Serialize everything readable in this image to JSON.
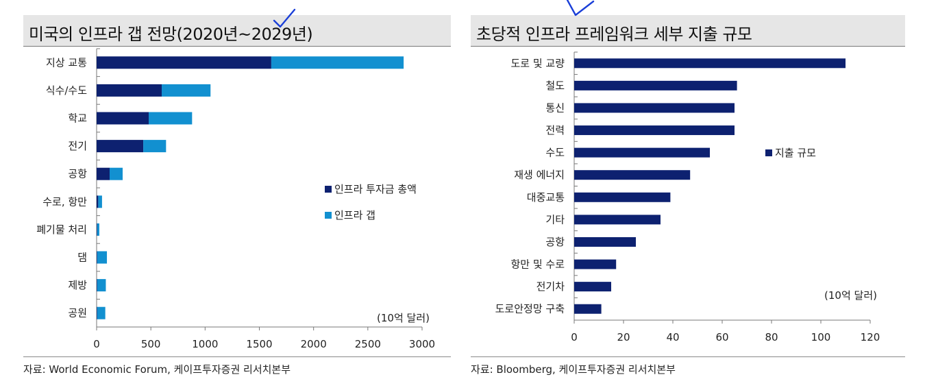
{
  "left": {
    "title": "미국의 인프라 갭 전망(2020년~2029년)",
    "source": "자료: World Economic Forum, 케이프투자증권 리서치본부",
    "chart_data": {
      "type": "bar",
      "orientation": "horizontal",
      "stacked": true,
      "categories": [
        "지상 교통",
        "식수/수도",
        "학교",
        "전기",
        "공항",
        "수로, 항만",
        "폐기물 처리",
        "댐",
        "제방",
        "공원"
      ],
      "series": [
        {
          "name": "인프라 투자금 총액",
          "color": "#0d2170",
          "values": [
            1610,
            600,
            480,
            430,
            120,
            15,
            5,
            5,
            5,
            5
          ]
        },
        {
          "name": "인프라 갭",
          "color": "#1290d0",
          "values": [
            1220,
            450,
            400,
            210,
            120,
            35,
            20,
            90,
            80,
            75
          ]
        }
      ],
      "xlim": [
        0,
        3000
      ],
      "xticks": [
        "0",
        "500",
        "1000",
        "1500",
        "2000",
        "2500",
        "3000"
      ],
      "xtick_values": [
        0,
        500,
        1000,
        1500,
        2000,
        2500,
        3000
      ],
      "unit_label": "(10억 달러)",
      "legend_position": "right"
    }
  },
  "right": {
    "title": "초당적 인프라 프레임워크 세부 지출 규모",
    "source": "자료: Bloomberg, 케이프투자증권 리서치본부",
    "chart_data": {
      "type": "bar",
      "orientation": "horizontal",
      "categories": [
        "도로 및 교량",
        "철도",
        "통신",
        "전력",
        "수도",
        "재생 에너지",
        "대중교통",
        "기타",
        "공항",
        "항만 및 수로",
        "전기차",
        "도로안정망 구축"
      ],
      "series": [
        {
          "name": "지출 규모",
          "color": "#0d2170",
          "values": [
            110,
            66,
            65,
            65,
            55,
            47,
            39,
            35,
            25,
            17,
            15,
            11
          ]
        }
      ],
      "xlim": [
        0,
        120
      ],
      "xticks": [
        "0",
        "20",
        "40",
        "60",
        "80",
        "100",
        "120"
      ],
      "xtick_values": [
        0,
        20,
        40,
        60,
        80,
        100,
        120
      ],
      "unit_label": "(10억 달러)",
      "legend_position": "right"
    }
  },
  "colors": {
    "annotation": "#1a3fd8"
  }
}
